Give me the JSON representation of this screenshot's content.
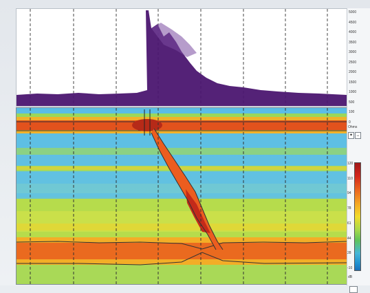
{
  "trend_scale": {
    "ticks": [
      "5000",
      "4500",
      "4000",
      "3500",
      "3000",
      "2500",
      "2000",
      "1500",
      "1000",
      "500",
      "100",
      "0"
    ],
    "unit": "Ohms"
  },
  "toolbar": {
    "btn1": "✦",
    "btn2": "↔"
  },
  "color_scale": {
    "ticks": [
      "120",
      "110",
      "94",
      "78",
      "61",
      "44",
      "28",
      "-10"
    ],
    "unit": "dB"
  },
  "colors": {
    "trend_fill": "#4b1670",
    "spectro_background": "#56b7e6",
    "high_band": "#e0401c",
    "mid_band": "#f0d12a",
    "low_band": "#8cd252"
  }
}
